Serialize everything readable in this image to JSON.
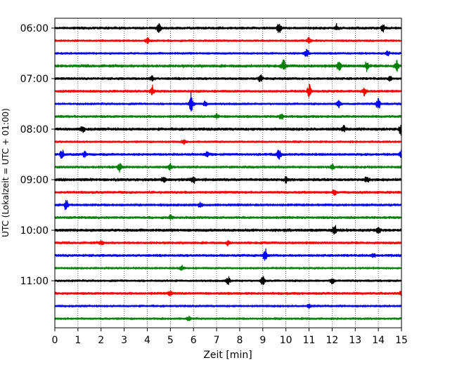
{
  "chart_data": {
    "type": "line",
    "title": "",
    "xlabel": "Zeit  [min]",
    "ylabel": "UTC (Lokalzeit = UTC + 01:00)",
    "xlim": [
      0,
      15
    ],
    "x_ticks": [
      "0",
      "1",
      "2",
      "3",
      "4",
      "5",
      "6",
      "7",
      "8",
      "9",
      "10",
      "11",
      "12",
      "13",
      "14",
      "15"
    ],
    "y_ticks": [
      "06:00",
      "07:00",
      "08:00",
      "09:00",
      "10:00",
      "11:00"
    ],
    "grid": "vertical-dotted",
    "trace_colors": [
      "#000000",
      "#ff0000",
      "#0000ff",
      "#008000"
    ],
    "traces": [
      {
        "start": "06:00",
        "amplitude": 0.3,
        "events": [
          [
            4.5,
            1.6
          ],
          [
            9.7,
            1.8
          ],
          [
            12.2,
            0.8
          ],
          [
            14.2,
            0.9
          ]
        ]
      },
      {
        "start": "06:15",
        "amplitude": 0.25,
        "events": [
          [
            4.0,
            0.7
          ],
          [
            11.0,
            0.7
          ]
        ]
      },
      {
        "start": "06:30",
        "amplitude": 0.25,
        "events": [
          [
            10.9,
            0.9
          ],
          [
            14.4,
            0.6
          ]
        ]
      },
      {
        "start": "06:45",
        "amplitude": 0.35,
        "events": [
          [
            9.9,
            1.3
          ],
          [
            12.3,
            1.4
          ],
          [
            13.5,
            1.1
          ],
          [
            14.8,
            1.2
          ]
        ]
      },
      {
        "start": "07:00",
        "amplitude": 0.3,
        "events": [
          [
            4.2,
            0.8
          ],
          [
            8.9,
            0.9
          ],
          [
            14.5,
            0.6
          ]
        ]
      },
      {
        "start": "07:15",
        "amplitude": 0.3,
        "events": [
          [
            4.2,
            1.3
          ],
          [
            11.0,
            2.0
          ],
          [
            13.4,
            1.2
          ]
        ]
      },
      {
        "start": "07:30",
        "amplitude": 0.25,
        "events": [
          [
            5.9,
            2.7
          ],
          [
            6.5,
            0.9
          ],
          [
            12.3,
            1.3
          ],
          [
            14.0,
            1.6
          ]
        ]
      },
      {
        "start": "07:45",
        "amplitude": 0.3,
        "events": [
          [
            7.0,
            0.7
          ],
          [
            9.8,
            0.8
          ]
        ]
      },
      {
        "start": "08:00",
        "amplitude": 0.35,
        "events": [
          [
            1.2,
            0.8
          ],
          [
            12.5,
            0.8
          ],
          [
            15.0,
            2.0
          ]
        ]
      },
      {
        "start": "08:15",
        "amplitude": 0.25,
        "events": [
          [
            5.6,
            0.6
          ]
        ]
      },
      {
        "start": "08:30",
        "amplitude": 0.3,
        "events": [
          [
            0.3,
            1.4
          ],
          [
            1.3,
            0.9
          ],
          [
            6.6,
            0.8
          ],
          [
            9.7,
            1.5
          ],
          [
            15.0,
            1.0
          ]
        ]
      },
      {
        "start": "08:45",
        "amplitude": 0.3,
        "events": [
          [
            2.8,
            1.3
          ],
          [
            5.0,
            0.6
          ],
          [
            12.0,
            0.6
          ]
        ]
      },
      {
        "start": "09:00",
        "amplitude": 0.35,
        "events": [
          [
            4.7,
            0.7
          ],
          [
            6.0,
            0.8
          ],
          [
            10.0,
            0.7
          ],
          [
            13.5,
            0.9
          ]
        ]
      },
      {
        "start": "09:15",
        "amplitude": 0.3,
        "events": [
          [
            12.1,
            1.0
          ]
        ]
      },
      {
        "start": "09:30",
        "amplitude": 0.3,
        "events": [
          [
            0.5,
            1.3
          ],
          [
            6.3,
            0.7
          ]
        ]
      },
      {
        "start": "09:45",
        "amplitude": 0.3,
        "events": [
          [
            5.0,
            0.5
          ]
        ]
      },
      {
        "start": "10:00",
        "amplitude": 0.35,
        "events": [
          [
            12.1,
            1.5
          ],
          [
            14.0,
            0.7
          ]
        ]
      },
      {
        "start": "10:15",
        "amplitude": 0.3,
        "events": [
          [
            2.0,
            0.5
          ],
          [
            7.5,
            0.6
          ]
        ]
      },
      {
        "start": "10:30",
        "amplitude": 0.3,
        "events": [
          [
            9.1,
            1.6
          ],
          [
            13.8,
            0.6
          ]
        ]
      },
      {
        "start": "10:45",
        "amplitude": 0.25,
        "events": [
          [
            5.5,
            0.5
          ]
        ]
      },
      {
        "start": "11:00",
        "amplitude": 0.25,
        "events": [
          [
            7.5,
            1.0
          ],
          [
            9.0,
            1.5
          ],
          [
            12.0,
            1.0
          ]
        ]
      },
      {
        "start": "11:15",
        "amplitude": 0.3,
        "events": [
          [
            5.0,
            0.6
          ],
          [
            15.0,
            0.8
          ]
        ]
      },
      {
        "start": "11:30",
        "amplitude": 0.25,
        "events": [
          [
            11.0,
            0.5
          ]
        ]
      },
      {
        "start": "11:45",
        "amplitude": 0.25,
        "events": [
          [
            5.8,
            0.6
          ]
        ]
      }
    ]
  }
}
